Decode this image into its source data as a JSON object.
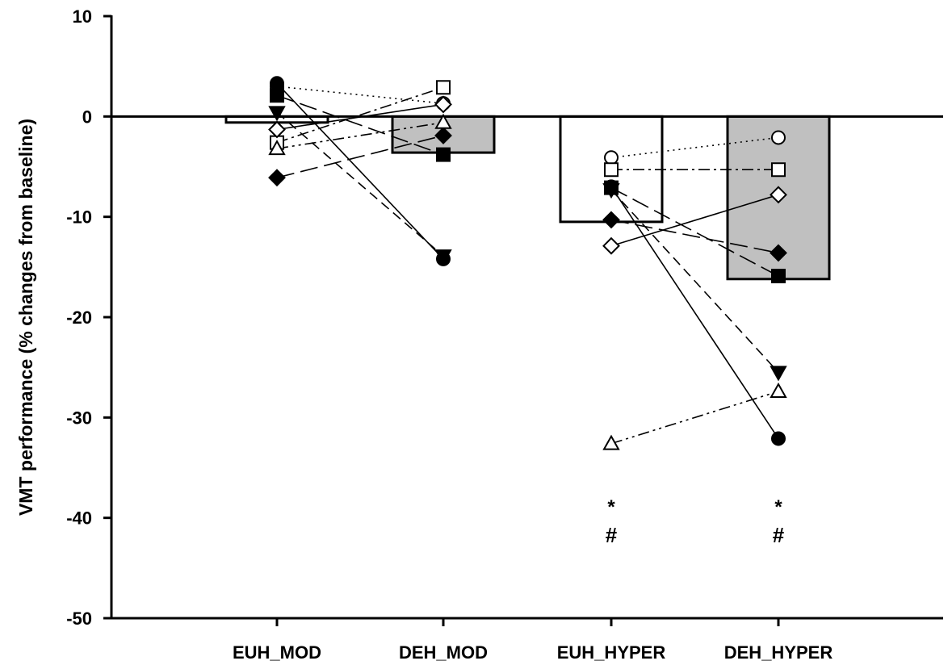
{
  "chart_data": {
    "type": "bar",
    "title": "",
    "xlabel": "",
    "ylabel": "VMT performance (% changes from baseline)",
    "ylim": [
      -50,
      10
    ],
    "yticks": [
      10,
      0,
      -10,
      -20,
      -30,
      -40,
      -50
    ],
    "grid": false,
    "categories": [
      "EUH_MOD",
      "DEH_MOD",
      "EUH_HYPER",
      "DEH_HYPER"
    ],
    "bar_values": [
      -0.6,
      -3.6,
      -10.5,
      -16.2
    ],
    "bar_colors": [
      "#ffffff",
      "#c0c0c0",
      "#ffffff",
      "#c0c0c0"
    ],
    "individuals": [
      {
        "marker": "circle-open",
        "dash": "dotted",
        "values": [
          3.0,
          1.3,
          -4.1,
          -2.1
        ]
      },
      {
        "marker": "circle-filled",
        "dash": "solid",
        "values": [
          3.3,
          -14.2,
          -7.0,
          -32.1
        ]
      },
      {
        "marker": "square-open",
        "dash": "dashdot",
        "values": [
          -2.6,
          2.9,
          -5.3,
          -5.3
        ]
      },
      {
        "marker": "square-filled",
        "dash": "longdash",
        "values": [
          2.1,
          -3.8,
          -7.1,
          -15.9
        ]
      },
      {
        "marker": "diamond-open",
        "dash": "solid",
        "values": [
          -1.3,
          1.2,
          -12.9,
          -7.8
        ]
      },
      {
        "marker": "diamond-filled",
        "dash": "longdash",
        "values": [
          -6.1,
          -1.9,
          -10.3,
          -13.6
        ]
      },
      {
        "marker": "triangle-up-open",
        "dash": "dashdotdot",
        "values": [
          -3.2,
          -0.6,
          -32.6,
          -27.4
        ]
      },
      {
        "marker": "triangle-down-filled",
        "dash": "dashed",
        "values": [
          0.4,
          -13.9,
          -7.3,
          -25.5
        ]
      }
    ],
    "annotations": [
      {
        "category": "EUH_HYPER",
        "lines": [
          "*",
          "#"
        ]
      },
      {
        "category": "DEH_HYPER",
        "lines": [
          "*",
          "#"
        ]
      }
    ]
  }
}
